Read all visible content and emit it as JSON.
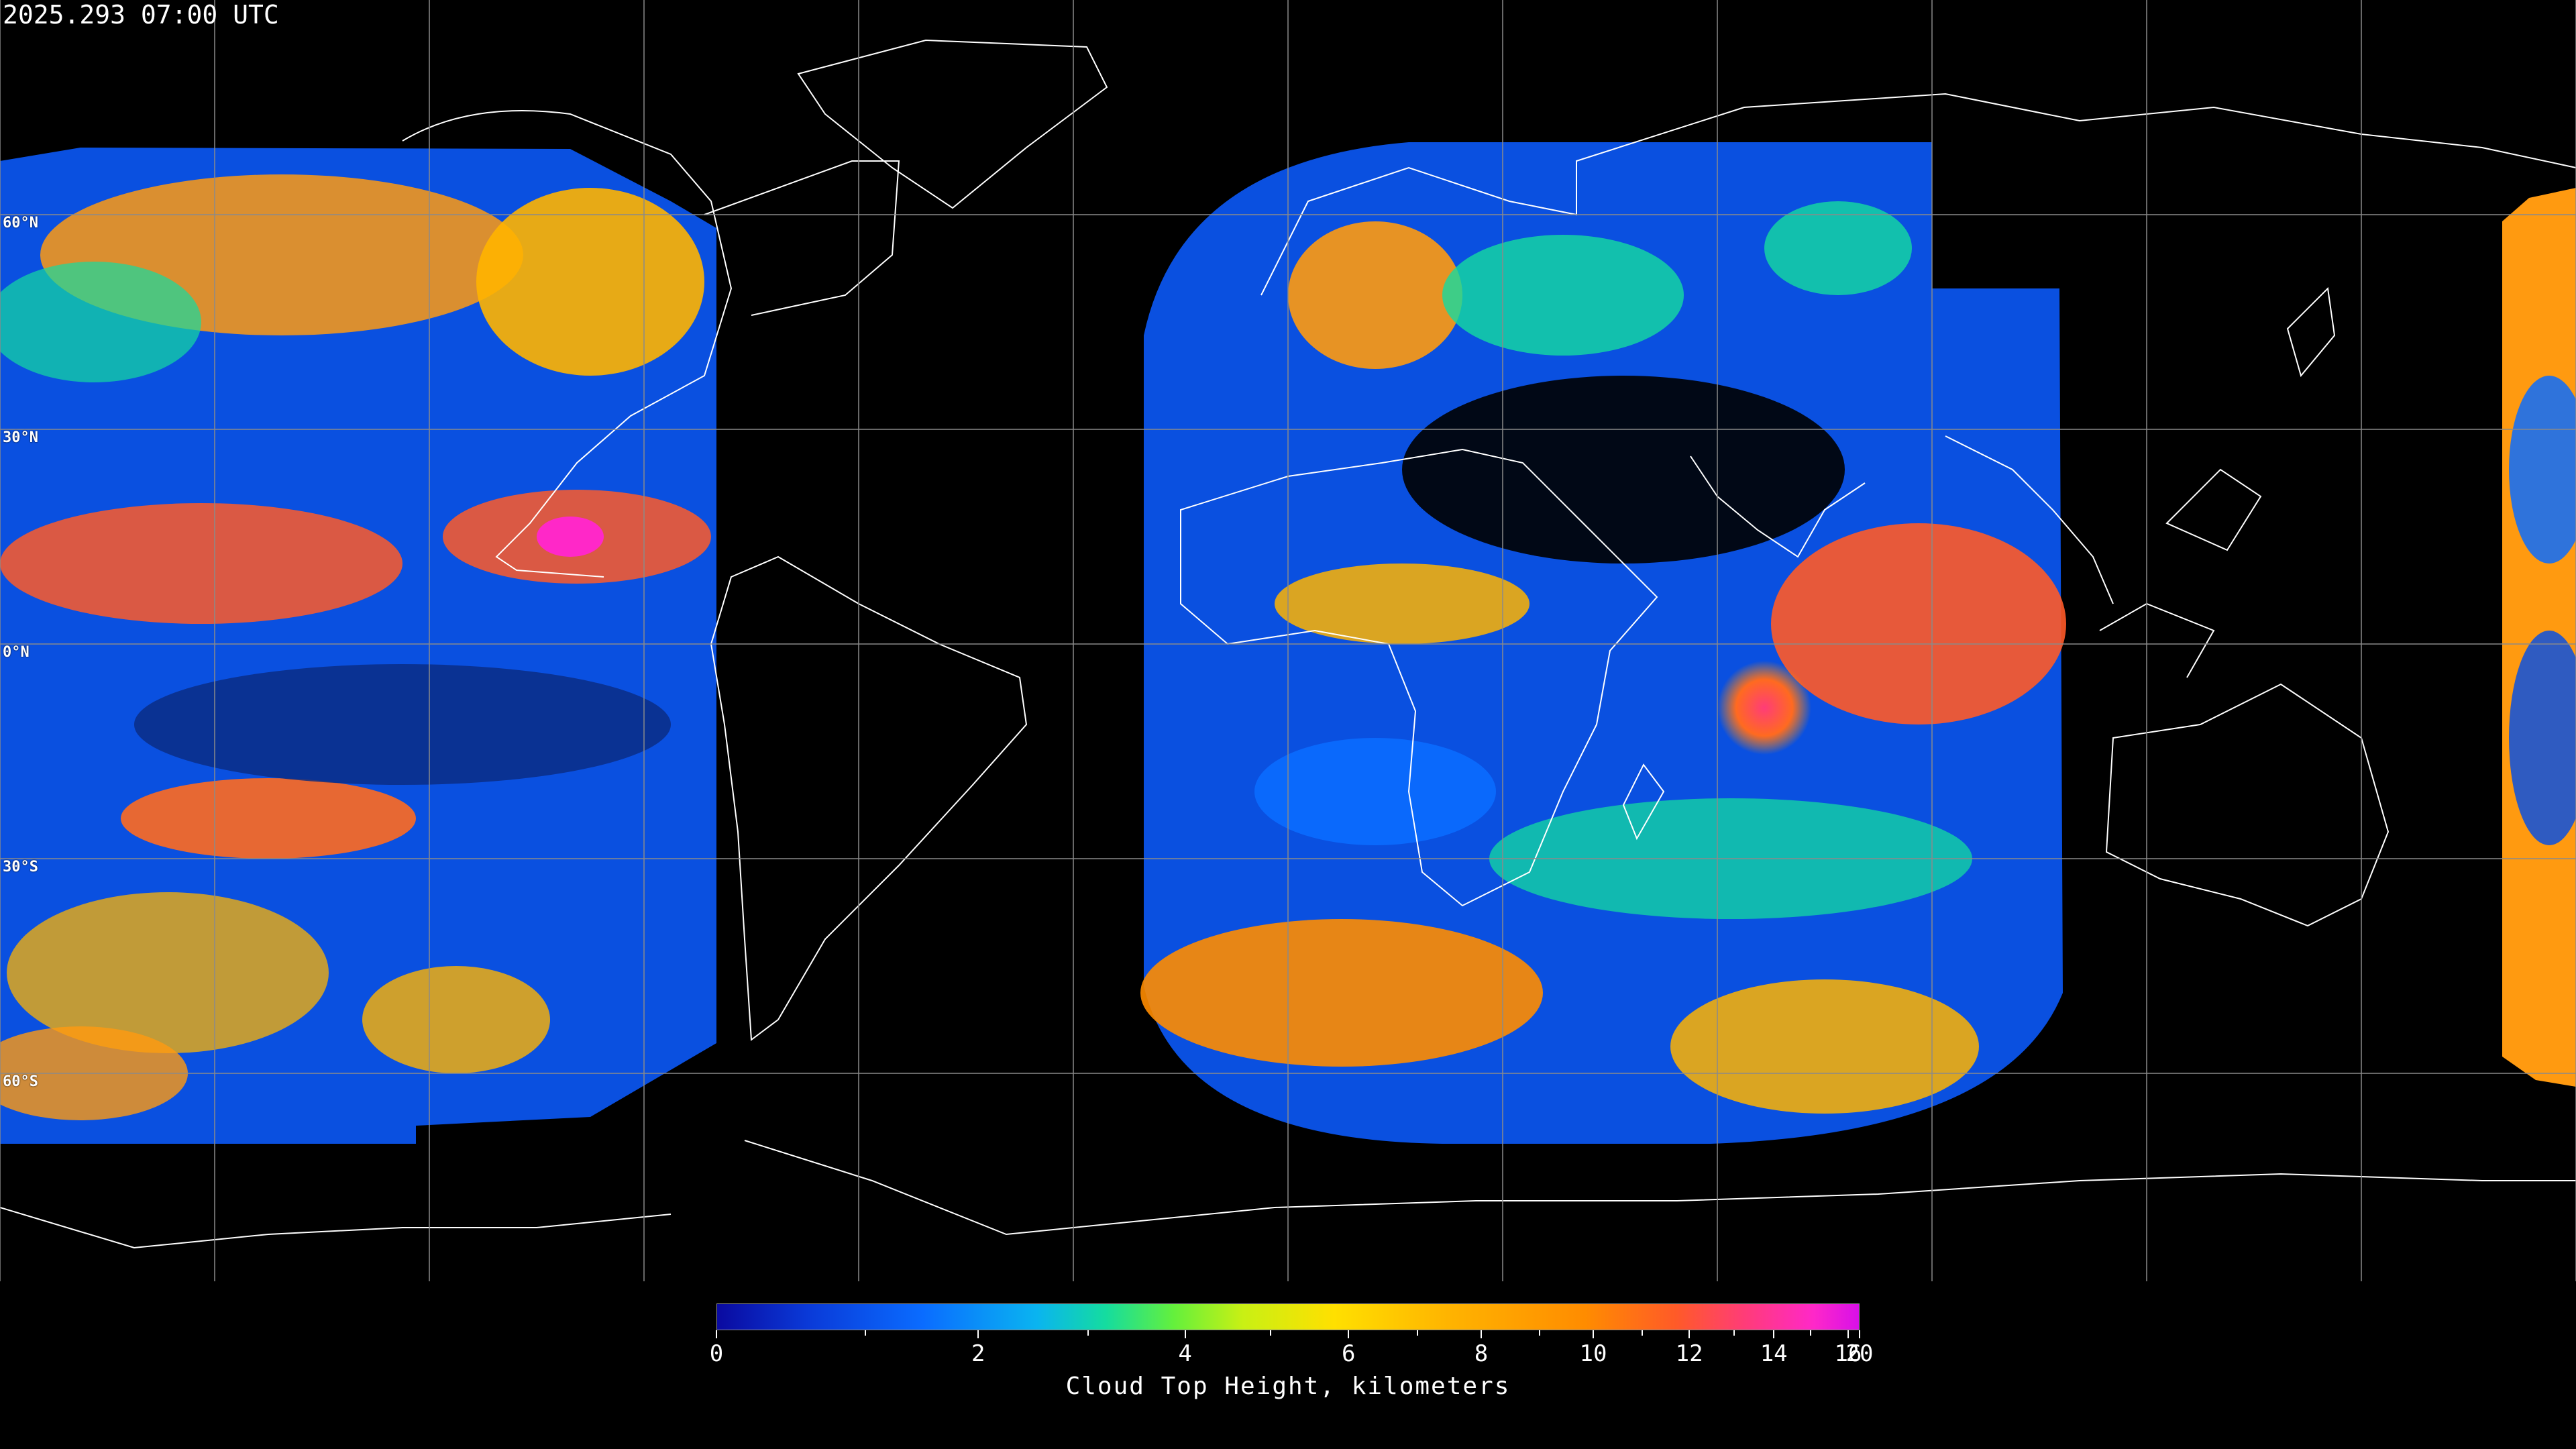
{
  "header": {
    "timestamp": "2025.293 07:00 UTC"
  },
  "map": {
    "projection": "equirectangular",
    "background": "#000000",
    "gridline_color": "#8a8a8a",
    "coastline_color": "#ffffff",
    "lat_labels": [
      "60°N",
      "30°N",
      "0°N",
      "30°S",
      "60°S"
    ]
  },
  "colorbar": {
    "title": "Cloud Top Height, kilometers",
    "labels": [
      "0",
      "2",
      "4",
      "6",
      "8",
      "10",
      "12",
      "14",
      "16",
      "20"
    ],
    "colors": [
      "#0a0aa0",
      "#0a6cff",
      "#14dca0",
      "#c8f014",
      "#ffe000",
      "#ff8c00",
      "#ff3c78",
      "#d810e8"
    ]
  }
}
